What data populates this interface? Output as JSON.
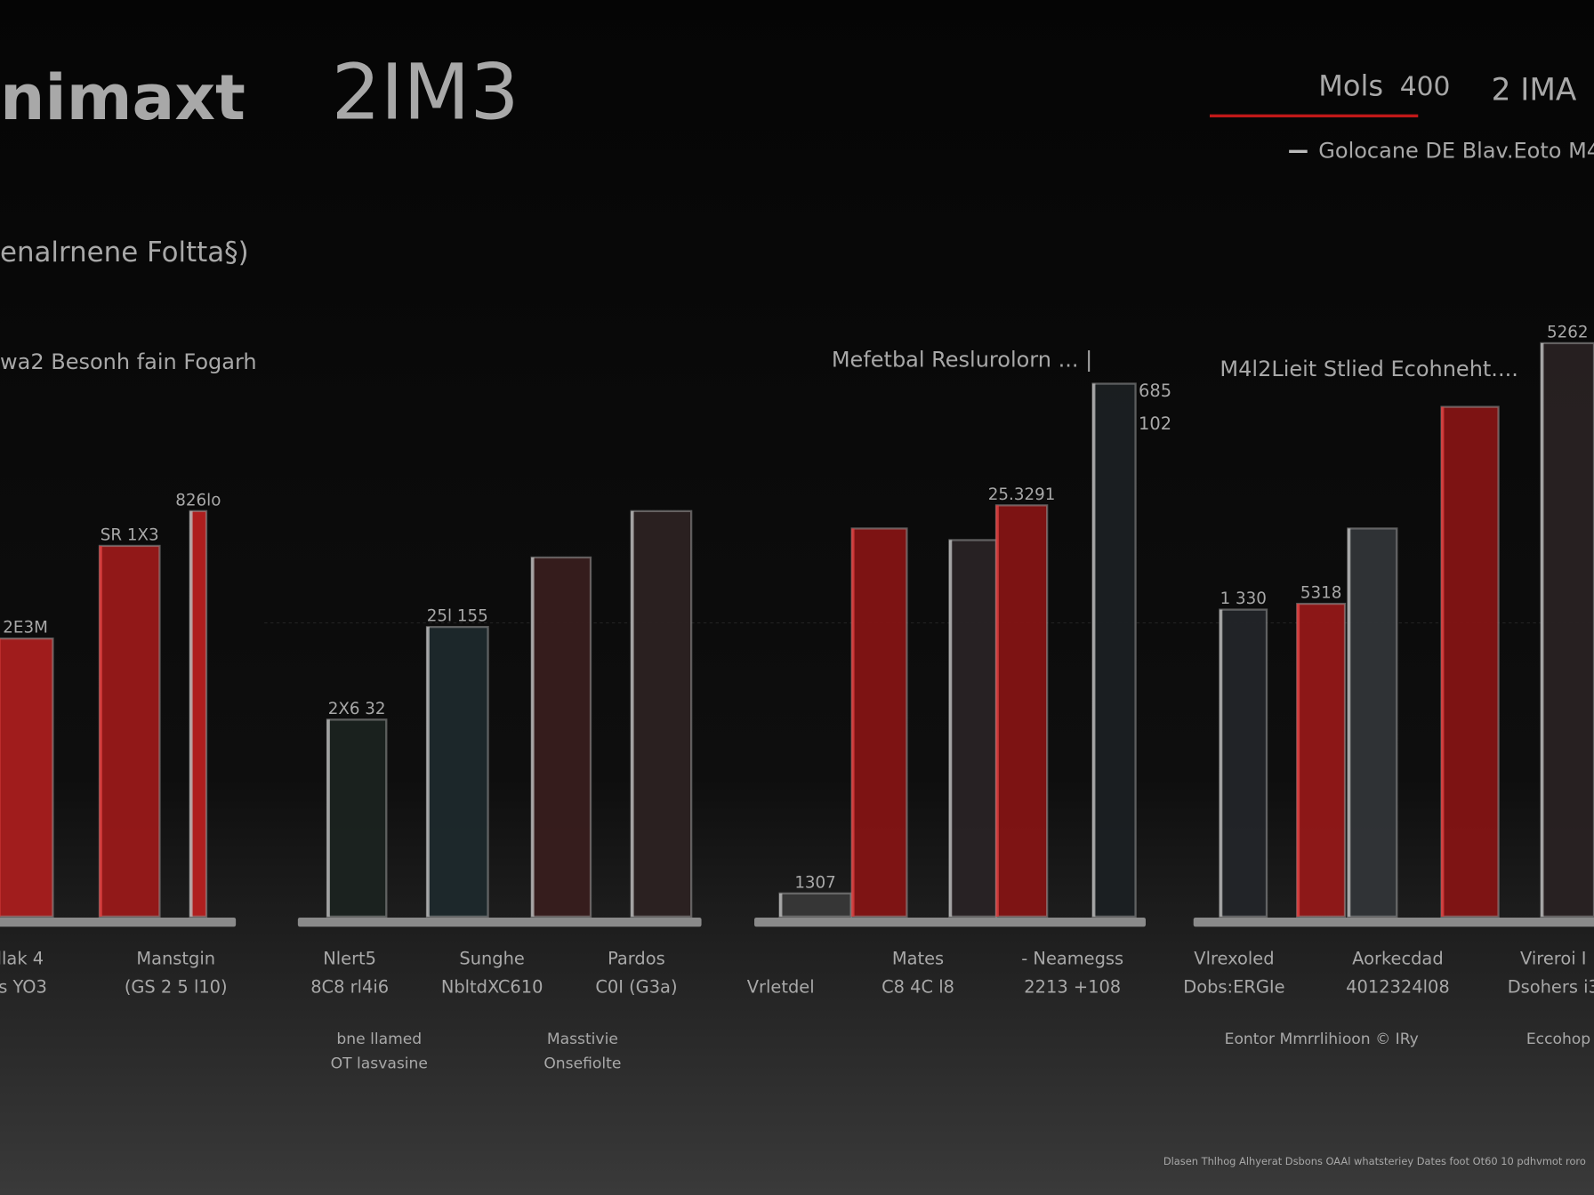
{
  "header": {
    "title": "nimaxt",
    "title2": "2IM3",
    "subtitle": "enalrnene Foltta§)",
    "legend": {
      "label": "Mols",
      "value": "400",
      "extra": "2 IMA",
      "series": "Golocane DE Blav.Eoto M4"
    }
  },
  "chart_data": [
    {
      "type": "bar",
      "title": "wa2 Besonh fain Fogarh",
      "ylim": [
        0,
        100
      ],
      "values": [
        48,
        64,
        70
      ],
      "colors": [
        "#b01e1e",
        "#a01a1a",
        "#c02020"
      ],
      "bar_texts": [
        "2E3M",
        "SR 1X3",
        "826lo"
      ]
    },
    {
      "type": "bar",
      "ylim": [
        0,
        100
      ],
      "values": [
        34,
        50,
        62,
        70
      ],
      "colors": [
        "#1c2420",
        "#1e2a2e",
        "#3a1e1e",
        "#2e2222"
      ],
      "bar_texts": [
        "2X6 32",
        "25l 155",
        null,
        null
      ]
    },
    {
      "type": "bar",
      "title": "Mefetbal Reslurolorn ... |",
      "ylim": [
        0,
        100
      ],
      "values": [
        4,
        67,
        65,
        71,
        92
      ],
      "colors": [
        "#3a3a3a",
        "#8a1414",
        "#2a2426",
        "#8a1414",
        "#1c2024"
      ],
      "bar_texts": [
        "1307",
        null,
        null,
        "25.3291",
        [
          "685",
          "102"
        ]
      ]
    },
    {
      "type": "bar",
      "title": "M4l2Lieit Stlied Ecohneht....",
      "ylim": [
        0,
        100
      ],
      "values": [
        53,
        54,
        67,
        88,
        99
      ],
      "colors": [
        "#24262a",
        "#9a1818",
        "#33363a",
        "#8a1414",
        "#2a2224"
      ],
      "bar_texts": [
        "1 330",
        "5318",
        null,
        null,
        "5262"
      ]
    }
  ],
  "category_labels": [
    {
      "line1": "llak 4",
      "line2": "ls YO3"
    },
    {
      "line1": "Manstgin",
      "line2": "(GS 2 5 l10)"
    },
    {
      "line1": "Nlert5",
      "line2": "8C8 rl4i6"
    },
    {
      "line1": "Sunghe",
      "line2": "NbltdXC610"
    },
    {
      "line1": "Pardos",
      "line2": "C0I (G3a)"
    },
    {
      "line2": "Vrletdel"
    },
    {
      "line1": "Mates",
      "line2": "C8 4C l8"
    },
    {
      "line1": "- Neamegss",
      "line2": "2213 +108"
    },
    {
      "line1": "Vlrexoled",
      "line2": "Dobs:ERGIe"
    },
    {
      "line1": "Aorkecdad",
      "line2": "4012324l08"
    },
    {
      "line1": "Vireroi I",
      "line2": "Dsohers i3"
    }
  ],
  "notes": [
    {
      "line1": "bne llamed",
      "line2": "OT lasvasine"
    },
    {
      "line1": "Masstivie",
      "line2": "Onsefiolte"
    },
    {
      "line1": "Eontor Mmrrlihioon © IRy"
    },
    {
      "line1": "Eccohop"
    }
  ],
  "footer": "Dlasen Thlhog Alhyerat Dsbons OAAl whatsteriey Dates foot Ot60 10 pdhvmot roro"
}
